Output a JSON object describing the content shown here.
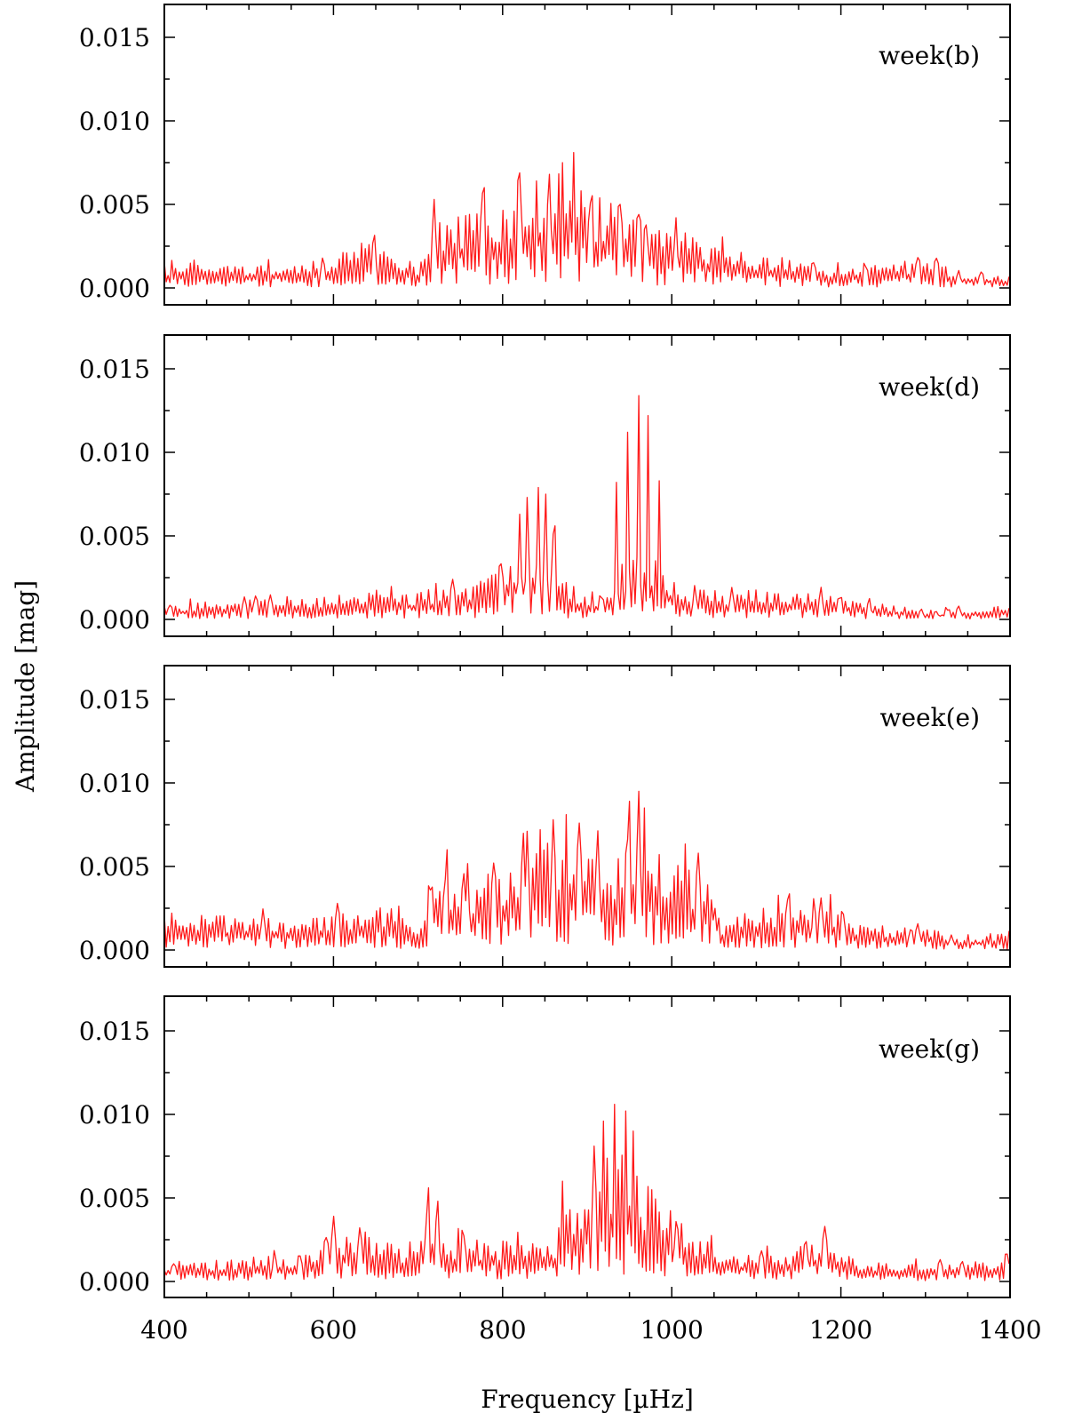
{
  "chart_data": {
    "type": "line",
    "xlabel": "Frequency [µHz]",
    "ylabel": "Amplitude [mag]",
    "xlim": [
      400,
      1400
    ],
    "ylim": [
      0,
      0.017
    ],
    "x_ticks": [
      400,
      600,
      800,
      1000,
      1200,
      1400
    ],
    "x_tick_labels": [
      "400",
      "600",
      "800",
      "1000",
      "1200",
      "1400"
    ],
    "y_ticks": [
      0,
      0.005,
      0.01,
      0.015
    ],
    "y_tick_labels": [
      "0.000",
      "0.005",
      "0.010",
      "0.015"
    ],
    "line_color": "#ff1a1a",
    "panels": [
      {
        "label": "week(b)",
        "envelope": [
          [
            400,
            0.0012
          ],
          [
            500,
            0.0012
          ],
          [
            560,
            0.0014
          ],
          [
            600,
            0.0016
          ],
          [
            640,
            0.0025
          ],
          [
            680,
            0.0018
          ],
          [
            700,
            0.0012
          ],
          [
            720,
            0.0035
          ],
          [
            760,
            0.0042
          ],
          [
            800,
            0.0048
          ],
          [
            840,
            0.0058
          ],
          [
            880,
            0.0065
          ],
          [
            900,
            0.005
          ],
          [
            940,
            0.0042
          ],
          [
            980,
            0.0032
          ],
          [
            1020,
            0.0028
          ],
          [
            1060,
            0.0022
          ],
          [
            1100,
            0.0018
          ],
          [
            1200,
            0.0011
          ],
          [
            1260,
            0.0012
          ],
          [
            1300,
            0.0017
          ],
          [
            1340,
            0.0008
          ],
          [
            1400,
            0.0007
          ]
        ],
        "peaks": [
          [
            885,
            0.0081
          ],
          [
            870,
            0.0075
          ],
          [
            855,
            0.0068
          ],
          [
            840,
            0.0064
          ],
          [
            720,
            0.0053
          ],
          [
            960,
            0.0044
          ],
          [
            940,
            0.005
          ],
          [
            1025,
            0.003
          ]
        ]
      },
      {
        "label": "week(d)",
        "envelope": [
          [
            400,
            0.0008
          ],
          [
            500,
            0.0011
          ],
          [
            600,
            0.0013
          ],
          [
            700,
            0.0015
          ],
          [
            760,
            0.002
          ],
          [
            800,
            0.003
          ],
          [
            830,
            0.004
          ],
          [
            860,
            0.0035
          ],
          [
            880,
            0.0015
          ],
          [
            920,
            0.0012
          ],
          [
            940,
            0.0025
          ],
          [
            960,
            0.0035
          ],
          [
            990,
            0.003
          ],
          [
            1010,
            0.0015
          ],
          [
            1100,
            0.0016
          ],
          [
            1200,
            0.0012
          ],
          [
            1260,
            0.0008
          ],
          [
            1300,
            0.0004
          ],
          [
            1400,
            0.0008
          ]
        ],
        "peaks": [
          [
            960,
            0.0134
          ],
          [
            947,
            0.0112
          ],
          [
            973,
            0.0122
          ],
          [
            985,
            0.0083
          ],
          [
            935,
            0.0082
          ],
          [
            842,
            0.0079
          ],
          [
            852,
            0.0075
          ],
          [
            830,
            0.0073
          ],
          [
            820,
            0.0063
          ],
          [
            863,
            0.0056
          ]
        ]
      },
      {
        "label": "week(e)",
        "envelope": [
          [
            400,
            0.002
          ],
          [
            500,
            0.0018
          ],
          [
            560,
            0.0016
          ],
          [
            600,
            0.002
          ],
          [
            660,
            0.0025
          ],
          [
            700,
            0.0012
          ],
          [
            720,
            0.004
          ],
          [
            760,
            0.0035
          ],
          [
            800,
            0.0045
          ],
          [
            840,
            0.0055
          ],
          [
            880,
            0.006
          ],
          [
            920,
            0.005
          ],
          [
            960,
            0.006
          ],
          [
            1000,
            0.0045
          ],
          [
            1050,
            0.004
          ],
          [
            1060,
            0.0015
          ],
          [
            1100,
            0.0022
          ],
          [
            1180,
            0.0025
          ],
          [
            1220,
            0.0012
          ],
          [
            1300,
            0.0012
          ],
          [
            1340,
            0.0008
          ],
          [
            1400,
            0.0009
          ]
        ],
        "peaks": [
          [
            960,
            0.0095
          ],
          [
            950,
            0.0089
          ],
          [
            968,
            0.0085
          ],
          [
            875,
            0.0081
          ],
          [
            860,
            0.0078
          ],
          [
            890,
            0.0076
          ],
          [
            845,
            0.0072
          ],
          [
            735,
            0.006
          ],
          [
            1032,
            0.0058
          ],
          [
            790,
            0.0052
          ]
        ]
      },
      {
        "label": "week(g)",
        "envelope": [
          [
            400,
            0.001
          ],
          [
            500,
            0.0013
          ],
          [
            580,
            0.0015
          ],
          [
            600,
            0.0028
          ],
          [
            640,
            0.0024
          ],
          [
            680,
            0.0018
          ],
          [
            720,
            0.0035
          ],
          [
            740,
            0.0022
          ],
          [
            800,
            0.0022
          ],
          [
            860,
            0.002
          ],
          [
            880,
            0.0045
          ],
          [
            920,
            0.0065
          ],
          [
            950,
            0.007
          ],
          [
            980,
            0.0045
          ],
          [
            1020,
            0.003
          ],
          [
            1060,
            0.0015
          ],
          [
            1140,
            0.0016
          ],
          [
            1180,
            0.0025
          ],
          [
            1220,
            0.001
          ],
          [
            1300,
            0.0009
          ],
          [
            1400,
            0.0012
          ]
        ],
        "peaks": [
          [
            932,
            0.0106
          ],
          [
            945,
            0.0102
          ],
          [
            920,
            0.0096
          ],
          [
            955,
            0.009
          ],
          [
            908,
            0.0081
          ],
          [
            713,
            0.0056
          ],
          [
            870,
            0.006
          ],
          [
            600,
            0.0039
          ],
          [
            1180,
            0.0033
          ]
        ]
      }
    ]
  }
}
